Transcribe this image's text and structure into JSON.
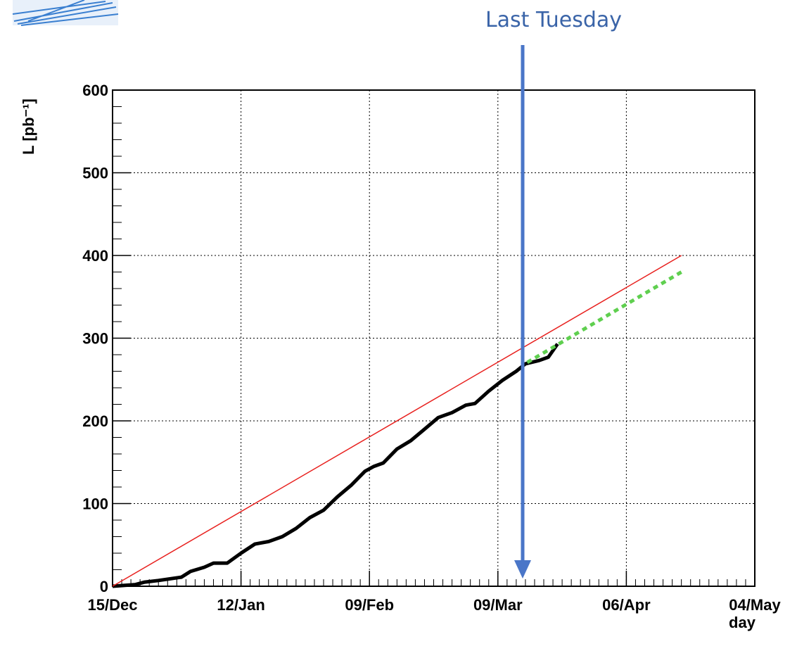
{
  "chart_data": {
    "type": "line",
    "x_label": "day",
    "y_label": "L [pb⁻¹]",
    "annotation": "Last Tuesday",
    "xlim": [
      0,
      140
    ],
    "xticks": [
      {
        "value": 0,
        "label": "15/Dec"
      },
      {
        "value": 28,
        "label": "12/Jan"
      },
      {
        "value": 56,
        "label": "09/Feb"
      },
      {
        "value": 84,
        "label": "09/Mar"
      },
      {
        "value": 112,
        "label": "06/Apr"
      },
      {
        "value": 140,
        "label": "04/May"
      }
    ],
    "ylim": [
      0,
      600
    ],
    "yticks": [
      0,
      100,
      200,
      300,
      400,
      500,
      600
    ],
    "grid": true,
    "series": [
      {
        "color": "#000000",
        "line_style": "thick",
        "x": [
          0,
          5,
          7,
          10,
          15,
          17,
          20,
          22,
          25,
          28,
          31,
          34,
          37,
          40,
          43,
          46,
          49,
          52,
          55,
          57,
          59,
          62,
          65,
          68,
          71,
          74,
          77,
          79,
          82,
          85,
          88,
          90,
          93,
          95,
          97
        ],
        "values": [
          0,
          2,
          5,
          7,
          11,
          18,
          23,
          28,
          28,
          40,
          51,
          54,
          60,
          70,
          83,
          92,
          108,
          122,
          139,
          145,
          149,
          166,
          176,
          190,
          204,
          210,
          219,
          221,
          236,
          249,
          260,
          269,
          273,
          277,
          293
        ]
      },
      {
        "color": "#e8201e",
        "line_style": "thin",
        "x": [
          0,
          124
        ],
        "values": [
          0,
          400
        ]
      },
      {
        "color": "#5fcf4f",
        "line_style": "dotted",
        "x": [
          90.4,
          124
        ],
        "values": [
          270.6,
          380
        ]
      }
    ]
  }
}
